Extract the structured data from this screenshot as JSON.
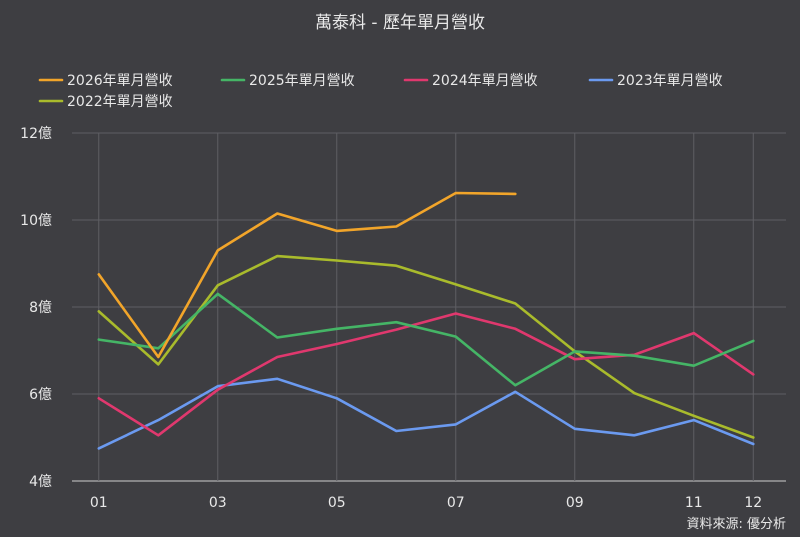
{
  "chart_data": {
    "type": "line",
    "title": "萬泰科 - 歷年單月營收",
    "source": "資料來源: 優分析",
    "xlabel": "",
    "ylabel": "",
    "x": [
      1,
      2,
      3,
      4,
      5,
      6,
      7,
      8,
      9,
      10,
      11,
      12
    ],
    "x_tick_labels": [
      {
        "x": 1,
        "label": "01"
      },
      {
        "x": 3,
        "label": "03"
      },
      {
        "x": 5,
        "label": "05"
      },
      {
        "x": 7,
        "label": "07"
      },
      {
        "x": 9,
        "label": "09"
      },
      {
        "x": 11,
        "label": "11"
      },
      {
        "x": 12,
        "label": "12"
      }
    ],
    "y_ticks": [
      4,
      6,
      8,
      10,
      12
    ],
    "y_unit": "億",
    "ylim": [
      4,
      12
    ],
    "grid": true,
    "legend_position": "top-left",
    "series": [
      {
        "name": "2026年單月營收",
        "color": "#f2a52a",
        "values": [
          8.75,
          6.85,
          9.3,
          10.15,
          9.75,
          9.85,
          10.62,
          10.6,
          null,
          null,
          null,
          null
        ]
      },
      {
        "name": "2025年單月營收",
        "color": "#45b566",
        "values": [
          7.25,
          7.05,
          8.3,
          7.3,
          7.5,
          7.65,
          7.32,
          6.2,
          6.98,
          6.88,
          6.65,
          7.22
        ]
      },
      {
        "name": "2024年單月營收",
        "color": "#e0386e",
        "values": [
          5.9,
          5.05,
          6.1,
          6.85,
          7.15,
          7.48,
          7.85,
          7.5,
          6.8,
          6.9,
          7.4,
          6.45
        ]
      },
      {
        "name": "2023年單月營收",
        "color": "#6b9af0",
        "values": [
          4.75,
          5.4,
          6.18,
          6.35,
          5.9,
          5.15,
          5.3,
          6.05,
          5.2,
          5.05,
          5.4,
          4.85
        ]
      },
      {
        "name": "2022年單月營收",
        "color": "#a9bb2c",
        "values": [
          7.9,
          6.68,
          8.5,
          9.17,
          9.07,
          8.95,
          8.52,
          8.08,
          6.98,
          6.02,
          5.5,
          5.0
        ]
      }
    ]
  }
}
